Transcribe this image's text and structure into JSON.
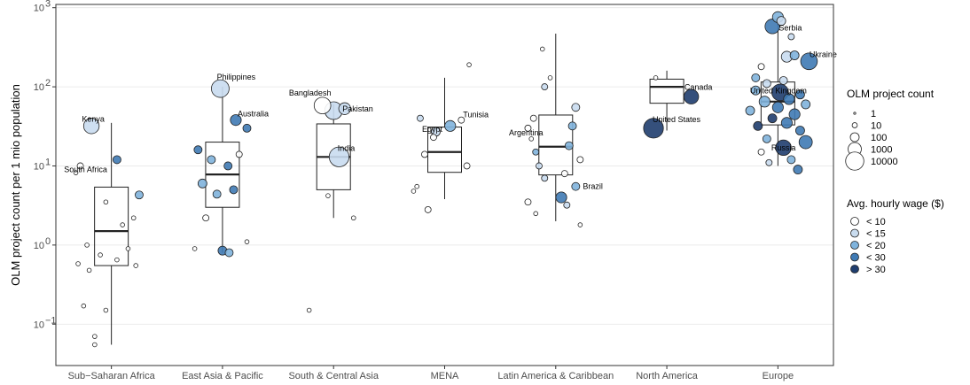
{
  "chart_data": {
    "type": "box-scatter",
    "title": "",
    "xlabel": "",
    "ylabel": "OLM project count per 1 mio population",
    "yscale": "log10",
    "ylim": [
      0.03,
      1100
    ],
    "yticks": [
      {
        "value": 0.1,
        "base": "10",
        "exp": "−1"
      },
      {
        "value": 1,
        "base": "10",
        "exp": "0"
      },
      {
        "value": 10,
        "base": "10",
        "exp": "1"
      },
      {
        "value": 100,
        "base": "10",
        "exp": "2"
      },
      {
        "value": 1000,
        "base": "10",
        "exp": "3"
      }
    ],
    "categories": [
      "Sub−Saharan Africa",
      "East Asia & Pacific",
      "South & Central Asia",
      "MENA",
      "Latin America & Caribbean",
      "North America",
      "Europe"
    ],
    "wage_colors": [
      "#ffffff",
      "#c9dcef",
      "#7fb3dc",
      "#3f7ab4",
      "#1f3d6e"
    ],
    "boxes": [
      {
        "category": "Sub−Saharan Africa",
        "whisker_low": 0.055,
        "q1": 0.55,
        "median": 1.5,
        "q3": 5.4,
        "whisker_high": 35
      },
      {
        "category": "East Asia & Pacific",
        "whisker_low": 0.8,
        "q1": 3.0,
        "median": 7.8,
        "q3": 20,
        "whisker_high": 100
      },
      {
        "category": "South & Central Asia",
        "whisker_low": 2.2,
        "q1": 5.0,
        "median": 13,
        "q3": 34,
        "whisker_high": 60
      },
      {
        "category": "MENA",
        "whisker_low": 3.8,
        "q1": 8.3,
        "median": 15,
        "q3": 31,
        "whisker_high": 130
      },
      {
        "category": "Latin America & Caribbean",
        "whisker_low": 2.0,
        "q1": 7.7,
        "median": 17.5,
        "q3": 44,
        "whisker_high": 470
      },
      {
        "category": "North America",
        "whisker_low": 28,
        "q1": 62,
        "median": 100,
        "q3": 125,
        "whisker_high": 160
      },
      {
        "category": "Europe",
        "whisker_low": 10,
        "q1": 33,
        "median": 65,
        "q3": 115,
        "whisker_high": 650
      }
    ],
    "points": [
      {
        "cat": 0,
        "dx": -0.18,
        "y": 32,
        "count": 3000,
        "wage": 1,
        "label": "Kenya",
        "lx": 2,
        "ly": -8,
        "anchor": "middle"
      },
      {
        "cat": 0,
        "dx": 0.05,
        "y": 12,
        "count": 60,
        "wage": 3
      },
      {
        "cat": 0,
        "dx": -0.28,
        "y": 10,
        "count": 20,
        "wage": 0,
        "label": "South Africa",
        "lx": 6,
        "ly": 4,
        "anchor": "middle"
      },
      {
        "cat": 0,
        "dx": -0.32,
        "y": 8.2,
        "count": 5,
        "wage": 0
      },
      {
        "cat": 0,
        "dx": 0.25,
        "y": 4.3,
        "count": 60,
        "wage": 2
      },
      {
        "cat": 0,
        "dx": -0.05,
        "y": 3.5,
        "count": 5,
        "wage": 0
      },
      {
        "cat": 0,
        "dx": 0.2,
        "y": 2.2,
        "count": 5,
        "wage": 0
      },
      {
        "cat": 0,
        "dx": 0.1,
        "y": 1.8,
        "count": 5,
        "wage": 0
      },
      {
        "cat": 0,
        "dx": -0.22,
        "y": 1.0,
        "count": 5,
        "wage": 0
      },
      {
        "cat": 0,
        "dx": 0.15,
        "y": 0.9,
        "count": 5,
        "wage": 0
      },
      {
        "cat": 0,
        "dx": -0.1,
        "y": 0.75,
        "count": 5,
        "wage": 0
      },
      {
        "cat": 0,
        "dx": 0.05,
        "y": 0.65,
        "count": 5,
        "wage": 0
      },
      {
        "cat": 0,
        "dx": -0.3,
        "y": 0.58,
        "count": 5,
        "wage": 0
      },
      {
        "cat": 0,
        "dx": 0.22,
        "y": 0.55,
        "count": 5,
        "wage": 0
      },
      {
        "cat": 0,
        "dx": -0.2,
        "y": 0.48,
        "count": 5,
        "wage": 0
      },
      {
        "cat": 0,
        "dx": -0.25,
        "y": 0.17,
        "count": 5,
        "wage": 0
      },
      {
        "cat": 0,
        "dx": -0.05,
        "y": 0.15,
        "count": 5,
        "wage": 0
      },
      {
        "cat": 0,
        "dx": -0.15,
        "y": 0.07,
        "count": 5,
        "wage": 0
      },
      {
        "cat": 0,
        "dx": -0.15,
        "y": 0.055,
        "count": 5,
        "wage": 0
      },
      {
        "cat": 1,
        "dx": -0.02,
        "y": 95,
        "count": 8000,
        "wage": 1,
        "label": "Philippines",
        "lx": 18,
        "ly": -13,
        "anchor": "middle"
      },
      {
        "cat": 1,
        "dx": 0.12,
        "y": 38,
        "count": 300,
        "wage": 3,
        "label": "Australia",
        "lx": 2,
        "ly": -7,
        "anchor": "start"
      },
      {
        "cat": 1,
        "dx": 0.22,
        "y": 30,
        "count": 60,
        "wage": 3
      },
      {
        "cat": 1,
        "dx": -0.22,
        "y": 16,
        "count": 60,
        "wage": 3
      },
      {
        "cat": 1,
        "dx": 0.15,
        "y": 14,
        "count": 20,
        "wage": 0
      },
      {
        "cat": 1,
        "dx": -0.1,
        "y": 12,
        "count": 60,
        "wage": 2
      },
      {
        "cat": 1,
        "dx": 0.05,
        "y": 10,
        "count": 60,
        "wage": 3
      },
      {
        "cat": 1,
        "dx": -0.18,
        "y": 6,
        "count": 100,
        "wage": 2
      },
      {
        "cat": 1,
        "dx": 0.1,
        "y": 5,
        "count": 60,
        "wage": 3
      },
      {
        "cat": 1,
        "dx": -0.05,
        "y": 4.4,
        "count": 60,
        "wage": 2
      },
      {
        "cat": 1,
        "dx": -0.15,
        "y": 2.2,
        "count": 20,
        "wage": 0
      },
      {
        "cat": 1,
        "dx": 0.22,
        "y": 1.1,
        "count": 5,
        "wage": 0
      },
      {
        "cat": 1,
        "dx": -0.25,
        "y": 0.9,
        "count": 5,
        "wage": 0
      },
      {
        "cat": 1,
        "dx": 0.0,
        "y": 0.85,
        "count": 100,
        "wage": 3
      },
      {
        "cat": 1,
        "dx": 0.06,
        "y": 0.8,
        "count": 60,
        "wage": 2
      },
      {
        "cat": 2,
        "dx": -0.1,
        "y": 58,
        "count": 5000,
        "wage": 0,
        "label": "Bangladesh",
        "lx": -14,
        "ly": -14,
        "anchor": "middle"
      },
      {
        "cat": 2,
        "dx": 0.0,
        "y": 50,
        "count": 8000,
        "wage": 1,
        "label": "Pakistan",
        "lx": 10,
        "ly": -2,
        "anchor": "start"
      },
      {
        "cat": 2,
        "dx": 0.1,
        "y": 53,
        "count": 500,
        "wage": 1
      },
      {
        "cat": 2,
        "dx": 0.05,
        "y": 13,
        "count": 20000,
        "wage": 1,
        "label": "India",
        "lx": 8,
        "ly": -10,
        "anchor": "middle"
      },
      {
        "cat": 2,
        "dx": -0.05,
        "y": 4.2,
        "count": 5,
        "wage": 0
      },
      {
        "cat": 2,
        "dx": 0.18,
        "y": 2.2,
        "count": 5,
        "wage": 0
      },
      {
        "cat": 2,
        "dx": -0.22,
        "y": 0.15,
        "count": 5,
        "wage": 0
      },
      {
        "cat": 3,
        "dx": 0.22,
        "y": 190,
        "count": 5,
        "wage": 0
      },
      {
        "cat": 3,
        "dx": 0.15,
        "y": 38,
        "count": 20,
        "wage": 0,
        "label": "Tunisia",
        "lx": 2,
        "ly": -6,
        "anchor": "start"
      },
      {
        "cat": 3,
        "dx": -0.22,
        "y": 40,
        "count": 20,
        "wage": 1
      },
      {
        "cat": 3,
        "dx": 0.05,
        "y": 32,
        "count": 300,
        "wage": 2
      },
      {
        "cat": 3,
        "dx": -0.08,
        "y": 27,
        "count": 100,
        "wage": 1,
        "label": "Egypt",
        "lx": -4,
        "ly": -3,
        "anchor": "middle"
      },
      {
        "cat": 3,
        "dx": -0.1,
        "y": 23,
        "count": 20,
        "wage": 0
      },
      {
        "cat": 3,
        "dx": -0.18,
        "y": 14,
        "count": 20,
        "wage": 0
      },
      {
        "cat": 3,
        "dx": 0.2,
        "y": 10,
        "count": 20,
        "wage": 0
      },
      {
        "cat": 3,
        "dx": -0.25,
        "y": 5.5,
        "count": 5,
        "wage": 0
      },
      {
        "cat": 3,
        "dx": -0.28,
        "y": 4.8,
        "count": 5,
        "wage": 0
      },
      {
        "cat": 3,
        "dx": -0.15,
        "y": 2.8,
        "count": 20,
        "wage": 0
      },
      {
        "cat": 4,
        "dx": -0.12,
        "y": 300,
        "count": 5,
        "wage": 0
      },
      {
        "cat": 4,
        "dx": -0.05,
        "y": 130,
        "count": 5,
        "wage": 0
      },
      {
        "cat": 4,
        "dx": -0.1,
        "y": 100,
        "count": 20,
        "wage": 1
      },
      {
        "cat": 4,
        "dx": 0.18,
        "y": 55,
        "count": 60,
        "wage": 1
      },
      {
        "cat": 4,
        "dx": -0.2,
        "y": 40,
        "count": 20,
        "wage": 0
      },
      {
        "cat": 4,
        "dx": -0.25,
        "y": 30,
        "count": 20,
        "wage": 0
      },
      {
        "cat": 4,
        "dx": 0.15,
        "y": 32,
        "count": 60,
        "wage": 2
      },
      {
        "cat": 4,
        "dx": -0.22,
        "y": 22,
        "count": 5,
        "wage": 0,
        "label": "Argentina",
        "lx": -6,
        "ly": -7,
        "anchor": "middle"
      },
      {
        "cat": 4,
        "dx": 0.12,
        "y": 18,
        "count": 60,
        "wage": 2
      },
      {
        "cat": 4,
        "dx": -0.18,
        "y": 15,
        "count": 20,
        "wage": 2
      },
      {
        "cat": 4,
        "dx": 0.22,
        "y": 12,
        "count": 20,
        "wage": 0
      },
      {
        "cat": 4,
        "dx": -0.15,
        "y": 10,
        "count": 20,
        "wage": 1
      },
      {
        "cat": 4,
        "dx": 0.08,
        "y": 8,
        "count": 20,
        "wage": 0
      },
      {
        "cat": 4,
        "dx": -0.1,
        "y": 7,
        "count": 20,
        "wage": 1
      },
      {
        "cat": 4,
        "dx": 0.18,
        "y": 5.5,
        "count": 60,
        "wage": 2,
        "label": "Brazil",
        "lx": 8,
        "ly": 0,
        "anchor": "start"
      },
      {
        "cat": 4,
        "dx": 0.05,
        "y": 4,
        "count": 300,
        "wage": 3
      },
      {
        "cat": 4,
        "dx": -0.25,
        "y": 3.5,
        "count": 20,
        "wage": 0
      },
      {
        "cat": 4,
        "dx": 0.1,
        "y": 3.2,
        "count": 20,
        "wage": 1
      },
      {
        "cat": 4,
        "dx": -0.18,
        "y": 2.5,
        "count": 5,
        "wage": 0
      },
      {
        "cat": 4,
        "dx": 0.22,
        "y": 1.8,
        "count": 5,
        "wage": 0
      },
      {
        "cat": 5,
        "dx": -0.1,
        "y": 130,
        "count": 5,
        "wage": 0
      },
      {
        "cat": 5,
        "dx": 0.22,
        "y": 75,
        "count": 2000,
        "wage": 4,
        "label": "Canada",
        "lx": 8,
        "ly": -11,
        "anchor": "middle"
      },
      {
        "cat": 5,
        "dx": -0.12,
        "y": 30,
        "count": 20000,
        "wage": 4,
        "label": "United States",
        "lx": 26,
        "ly": -10,
        "anchor": "middle"
      },
      {
        "cat": 6,
        "dx": 0.0,
        "y": 760,
        "count": 300,
        "wage": 2,
        "label": "Serbia",
        "lx": 14,
        "ly": 12,
        "anchor": "middle"
      },
      {
        "cat": 6,
        "dx": 0.03,
        "y": 680,
        "count": 100,
        "wage": 1
      },
      {
        "cat": 6,
        "dx": -0.05,
        "y": 580,
        "count": 2000,
        "wage": 3
      },
      {
        "cat": 6,
        "dx": 0.12,
        "y": 430,
        "count": 20,
        "wage": 1
      },
      {
        "cat": 6,
        "dx": 0.08,
        "y": 240,
        "count": 300,
        "wage": 1
      },
      {
        "cat": 6,
        "dx": 0.15,
        "y": 250,
        "count": 100,
        "wage": 2
      },
      {
        "cat": 6,
        "dx": 0.28,
        "y": 210,
        "count": 5000,
        "wage": 3,
        "label": "Ukraine",
        "lx": 16,
        "ly": -8,
        "anchor": "middle"
      },
      {
        "cat": 6,
        "dx": -0.15,
        "y": 180,
        "count": 20,
        "wage": 0
      },
      {
        "cat": 6,
        "dx": -0.2,
        "y": 130,
        "count": 60,
        "wage": 2
      },
      {
        "cat": 6,
        "dx": 0.05,
        "y": 120,
        "count": 60,
        "wage": 1
      },
      {
        "cat": 6,
        "dx": -0.1,
        "y": 110,
        "count": 60,
        "wage": 1
      },
      {
        "cat": 6,
        "dx": 0.02,
        "y": 85,
        "count": 5000,
        "wage": 4,
        "label": "United Kingdom",
        "lx": -2,
        "ly": -2,
        "anchor": "middle"
      },
      {
        "cat": 6,
        "dx": -0.2,
        "y": 90,
        "count": 100,
        "wage": 2
      },
      {
        "cat": 6,
        "dx": 0.2,
        "y": 80,
        "count": 100,
        "wage": 3
      },
      {
        "cat": 6,
        "dx": 0.1,
        "y": 70,
        "count": 300,
        "wage": 3
      },
      {
        "cat": 6,
        "dx": -0.12,
        "y": 65,
        "count": 300,
        "wage": 2
      },
      {
        "cat": 6,
        "dx": 0.25,
        "y": 60,
        "count": 100,
        "wage": 2
      },
      {
        "cat": 6,
        "dx": 0.0,
        "y": 55,
        "count": 300,
        "wage": 3
      },
      {
        "cat": 6,
        "dx": -0.25,
        "y": 50,
        "count": 100,
        "wage": 2
      },
      {
        "cat": 6,
        "dx": 0.15,
        "y": 45,
        "count": 300,
        "wage": 3
      },
      {
        "cat": 6,
        "dx": -0.05,
        "y": 40,
        "count": 100,
        "wage": 4
      },
      {
        "cat": 6,
        "dx": 0.08,
        "y": 35,
        "count": 300,
        "wage": 3
      },
      {
        "cat": 6,
        "dx": -0.18,
        "y": 32,
        "count": 100,
        "wage": 4
      },
      {
        "cat": 6,
        "dx": 0.2,
        "y": 28,
        "count": 100,
        "wage": 3
      },
      {
        "cat": 6,
        "dx": -0.1,
        "y": 22,
        "count": 60,
        "wage": 2
      },
      {
        "cat": 6,
        "dx": 0.25,
        "y": 20,
        "count": 1000,
        "wage": 3
      },
      {
        "cat": 6,
        "dx": 0.05,
        "y": 17,
        "count": 3000,
        "wage": 4,
        "label": "Russia",
        "lx": 0,
        "ly": 0,
        "anchor": "middle"
      },
      {
        "cat": 6,
        "dx": -0.15,
        "y": 15,
        "count": 20,
        "wage": 0
      },
      {
        "cat": 6,
        "dx": 0.12,
        "y": 12,
        "count": 60,
        "wage": 2
      },
      {
        "cat": 6,
        "dx": -0.08,
        "y": 11,
        "count": 20,
        "wage": 1
      },
      {
        "cat": 6,
        "dx": 0.18,
        "y": 9,
        "count": 100,
        "wage": 3
      }
    ],
    "legend_size": {
      "title": "OLM project count",
      "items": [
        {
          "label": "1",
          "value": 1
        },
        {
          "label": "10",
          "value": 10
        },
        {
          "label": "100",
          "value": 100
        },
        {
          "label": "1000",
          "value": 1000
        },
        {
          "label": "10000",
          "value": 10000
        }
      ]
    },
    "legend_color": {
      "title": "Avg. hourly wage ($)",
      "items": [
        {
          "label": "< 10",
          "wage": 0
        },
        {
          "label": "< 15",
          "wage": 1
        },
        {
          "label": "< 20",
          "wage": 2
        },
        {
          "label": "< 30",
          "wage": 3
        },
        {
          "label": "> 30",
          "wage": 4
        }
      ]
    },
    "grid": true,
    "legend_position": "right"
  }
}
